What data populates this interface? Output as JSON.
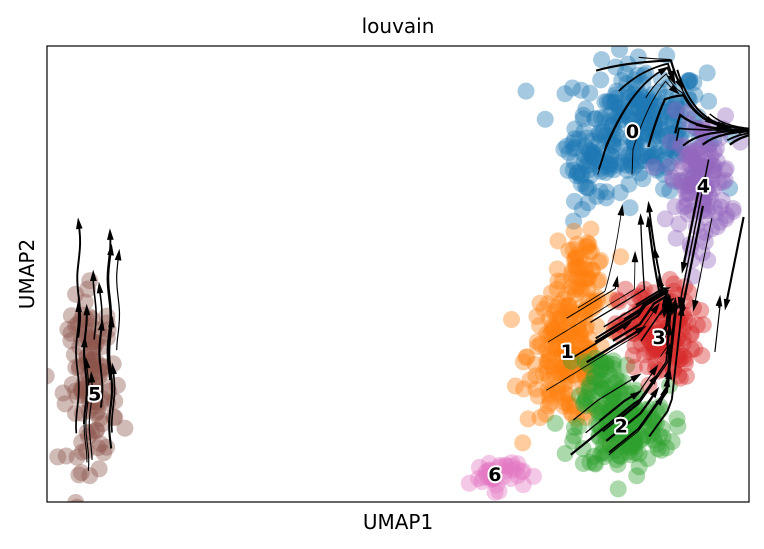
{
  "chart_data": {
    "type": "scatter",
    "subtype": "umap-velocity-stream",
    "title": "louvain",
    "xlabel": "UMAP1",
    "ylabel": "UMAP2",
    "xlim": [
      0,
      100
    ],
    "ylim": [
      0,
      65
    ],
    "grid": false,
    "legend": "on-data",
    "stream_color": "#000000",
    "clusters": [
      {
        "label": "0",
        "color": "#1f77b4",
        "center": [
          83.4,
          52.9
        ],
        "blobs": [
          [
            84.5,
            53.5,
            8.5,
            8.0,
            260
          ],
          [
            77.0,
            47.5,
            3.5,
            4.0,
            40
          ]
        ]
      },
      {
        "label": "1",
        "color": "#ff7f0e",
        "center": [
          74.1,
          21.5
        ],
        "blobs": [
          [
            74.0,
            21.0,
            5.0,
            9.0,
            190
          ],
          [
            76.5,
            33.0,
            3.0,
            4.5,
            50
          ]
        ]
      },
      {
        "label": "2",
        "color": "#2ca02c",
        "center": [
          81.8,
          10.9
        ],
        "blobs": [
          [
            82.0,
            10.5,
            6.0,
            5.5,
            170
          ],
          [
            79.0,
            18.0,
            3.0,
            3.5,
            40
          ]
        ]
      },
      {
        "label": "3",
        "color": "#d62728",
        "center": [
          87.2,
          23.5
        ],
        "blobs": [
          [
            87.0,
            24.0,
            5.0,
            6.0,
            150
          ]
        ]
      },
      {
        "label": "4",
        "color": "#9467bd",
        "center": [
          93.5,
          45.1
        ],
        "blobs": [
          [
            93.0,
            46.0,
            4.0,
            8.0,
            130
          ]
        ]
      },
      {
        "label": "5",
        "color": "#8c564b",
        "center": [
          6.8,
          15.5
        ],
        "blobs": [
          [
            6.5,
            17.0,
            3.2,
            11.0,
            120
          ]
        ]
      },
      {
        "label": "6",
        "color": "#e377c2",
        "center": [
          63.8,
          4.0
        ],
        "blobs": [
          [
            64.0,
            4.0,
            3.5,
            2.0,
            40
          ]
        ]
      }
    ]
  }
}
